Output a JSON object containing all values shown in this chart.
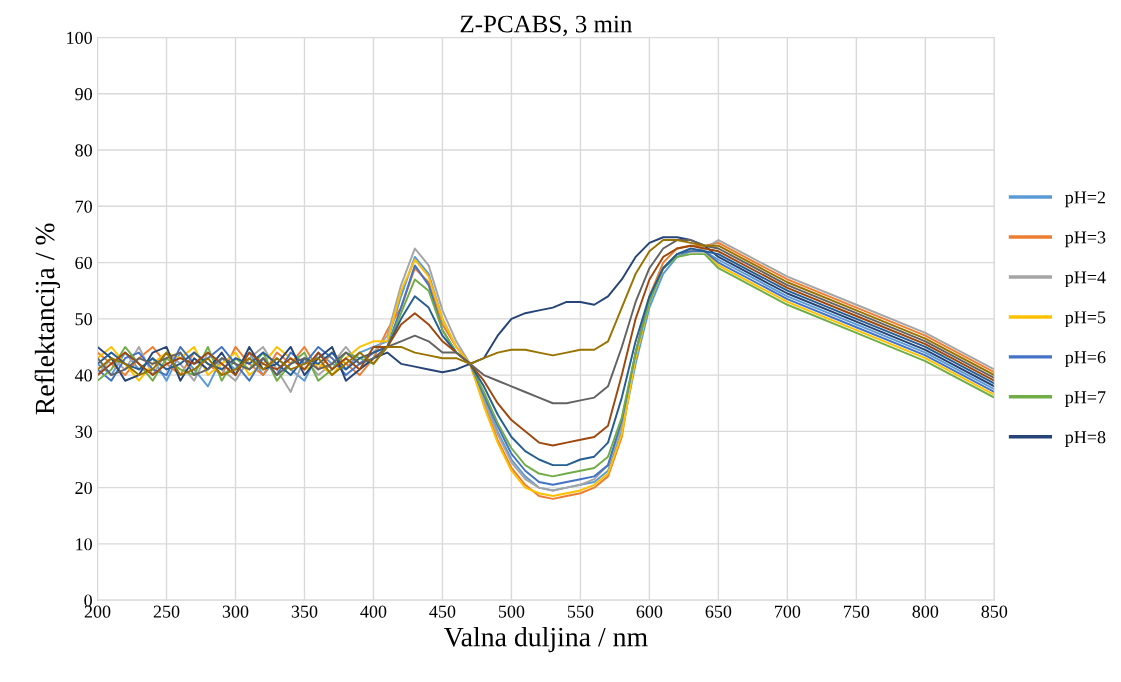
{
  "chart_data": {
    "type": "line",
    "title": "Z-PCABS, 3 min",
    "xlabel": "Valna duljina / nm",
    "ylabel": "Reflektancija / %",
    "x": [
      200,
      210,
      220,
      230,
      240,
      250,
      260,
      270,
      280,
      290,
      300,
      310,
      320,
      330,
      340,
      350,
      360,
      370,
      380,
      390,
      400,
      410,
      420,
      430,
      440,
      450,
      460,
      470,
      480,
      490,
      500,
      510,
      520,
      530,
      540,
      550,
      560,
      570,
      580,
      590,
      600,
      610,
      620,
      630,
      640,
      650,
      700,
      750,
      800,
      850
    ],
    "series": [
      {
        "name": "pH=2",
        "color": "#5b9bd5",
        "values": [
          42,
          40,
          44,
          41,
          43,
          39,
          44,
          41,
          38,
          43,
          41,
          44,
          40,
          43,
          41,
          39,
          44,
          42,
          41,
          44,
          45,
          46,
          54,
          61,
          58,
          50,
          45,
          42,
          36,
          30,
          25,
          22,
          20,
          19.5,
          20,
          20.5,
          21,
          23,
          30,
          42,
          52,
          58,
          61,
          62,
          62,
          60.5,
          54,
          49,
          44,
          37.5
        ]
      },
      {
        "name": "pH=3",
        "color": "#ed7d31",
        "values": [
          44,
          42,
          40,
          43,
          45,
          42,
          40,
          44,
          42,
          40,
          45,
          42,
          40,
          44,
          42,
          45,
          41,
          44,
          42,
          40,
          43,
          48,
          52,
          59,
          56.5,
          49,
          45,
          42,
          35,
          28.5,
          23.5,
          20.5,
          18.5,
          18,
          18.5,
          19,
          20,
          22,
          29,
          44,
          54,
          60,
          62.5,
          63,
          63,
          63.5,
          57,
          52,
          47,
          40.5
        ]
      },
      {
        "name": "pH=4",
        "color": "#a5a5a5",
        "values": [
          40,
          43,
          41,
          45,
          40,
          44,
          42,
          39,
          44,
          41,
          39,
          43,
          45,
          41,
          37,
          43,
          40,
          42,
          45,
          42,
          44,
          47,
          56,
          62.5,
          59.5,
          51.5,
          46,
          42,
          35.5,
          29.5,
          24.5,
          21.5,
          20,
          19.5,
          20,
          20.5,
          21.5,
          24,
          31,
          43,
          53,
          59,
          61.5,
          62,
          62.5,
          64,
          57.5,
          52.5,
          47.5,
          41
        ]
      },
      {
        "name": "pH=5",
        "color": "#ffc000",
        "values": [
          43,
          45,
          42,
          39,
          42,
          44,
          43,
          45,
          40,
          42,
          44,
          40,
          42,
          45,
          43,
          41,
          42,
          40,
          43,
          45,
          46,
          46,
          55,
          60.5,
          57.5,
          50,
          45,
          42,
          34.5,
          28,
          23,
          20,
          19,
          18.5,
          19,
          19.5,
          20.5,
          22.5,
          29.5,
          43,
          53,
          59,
          61.5,
          62,
          62,
          59.5,
          53,
          48,
          43,
          36.5
        ]
      },
      {
        "name": "pH=6",
        "color": "#4472c4",
        "values": [
          41,
          39,
          43,
          44,
          41,
          40,
          45,
          42,
          43,
          45,
          42,
          39,
          43,
          40,
          44,
          42,
          45,
          43,
          40,
          42,
          44,
          45,
          52,
          59.5,
          56,
          48,
          44,
          42,
          36.5,
          31,
          26,
          23,
          21,
          20.5,
          21,
          21.5,
          22,
          24,
          32,
          44,
          53.5,
          59,
          61.5,
          62,
          62,
          60,
          53.5,
          48.5,
          43.5,
          37
        ]
      },
      {
        "name": "pH=7",
        "color": "#70ad47",
        "values": [
          39,
          41,
          45,
          42,
          39,
          43,
          41,
          40,
          45,
          39,
          43,
          41,
          44,
          39,
          42,
          44,
          39,
          41,
          44,
          43,
          42,
          45,
          51,
          57,
          55,
          48,
          44,
          42,
          37,
          31.5,
          27,
          24,
          22.5,
          22,
          22.5,
          23,
          23.5,
          25.5,
          32.5,
          44,
          53,
          59,
          61,
          61.5,
          61.5,
          59,
          52.5,
          47.5,
          42.5,
          36
        ]
      },
      {
        "name": "pH=8",
        "color": "#264478",
        "values": [
          45,
          43,
          39,
          40,
          44,
          45,
          39,
          43,
          41,
          44,
          40,
          45,
          41,
          42,
          45,
          40,
          43,
          45,
          39,
          41,
          43,
          44,
          42,
          41.5,
          41,
          40.5,
          41,
          42,
          43,
          47,
          50,
          51,
          51.5,
          52,
          53,
          53,
          52.5,
          54,
          57,
          61,
          63.5,
          64.5,
          64.5,
          64,
          63,
          61,
          54.5,
          49.5,
          44.5,
          38
        ]
      },
      {
        "color": "#255e91",
        "values": [
          42,
          44,
          42,
          41,
          43,
          41,
          42,
          44,
          42,
          41,
          43,
          42,
          44,
          42,
          40,
          43,
          42,
          44,
          41,
          43,
          44,
          45,
          50,
          54,
          52,
          47,
          44,
          42,
          38,
          33,
          29,
          26.5,
          25,
          24,
          24,
          25,
          25.5,
          28,
          36,
          46,
          54,
          59,
          61.5,
          62.5,
          62,
          61.5,
          55,
          50,
          45,
          38.5
        ]
      },
      {
        "color": "#9e480e",
        "values": [
          40,
          42,
          44,
          42,
          40,
          42,
          43,
          42,
          44,
          42,
          40,
          44,
          42,
          41,
          43,
          41,
          44,
          41,
          43,
          41,
          45,
          45,
          49,
          51,
          49,
          46,
          44,
          42,
          39,
          35,
          32,
          30,
          28,
          27.5,
          28,
          28.5,
          29,
          31,
          40,
          50,
          57,
          61,
          62.5,
          63,
          62.5,
          62,
          55.5,
          50.5,
          45.5,
          39
        ]
      },
      {
        "color": "#636363",
        "values": [
          43,
          40,
          41,
          43,
          42,
          43,
          44,
          40,
          41,
          43,
          42,
          41,
          43,
          40,
          42,
          43,
          41,
          42,
          44,
          42,
          43,
          45,
          46,
          47,
          46,
          44,
          44,
          42,
          40,
          39,
          38,
          37,
          36,
          35,
          35,
          35.5,
          36,
          38,
          45,
          53,
          59,
          62.5,
          64,
          64,
          63,
          62.5,
          56,
          51,
          46,
          39.5
        ]
      },
      {
        "color": "#997300",
        "values": [
          41,
          43,
          42,
          40,
          41,
          44,
          40,
          41,
          43,
          40,
          41,
          43,
          41,
          43,
          41,
          42,
          43,
          40,
          42,
          44,
          42,
          45,
          45,
          44,
          43.5,
          43,
          43,
          42,
          43,
          44,
          44.5,
          44.5,
          44,
          43.5,
          44,
          44.5,
          44.5,
          46,
          52,
          58,
          62,
          64,
          64,
          63.5,
          63,
          63,
          56.5,
          51.5,
          46.5,
          40
        ]
      }
    ],
    "xlim": [
      200,
      850
    ],
    "xticks": [
      200,
      250,
      300,
      350,
      400,
      450,
      500,
      550,
      600,
      650,
      700,
      750,
      800,
      850
    ],
    "ylim": [
      0,
      100
    ],
    "yticks": [
      0,
      10,
      20,
      30,
      40,
      50,
      60,
      70,
      80,
      90,
      100
    ],
    "grid": true,
    "legend": "right",
    "marker": "none",
    "line_style": "solid"
  }
}
